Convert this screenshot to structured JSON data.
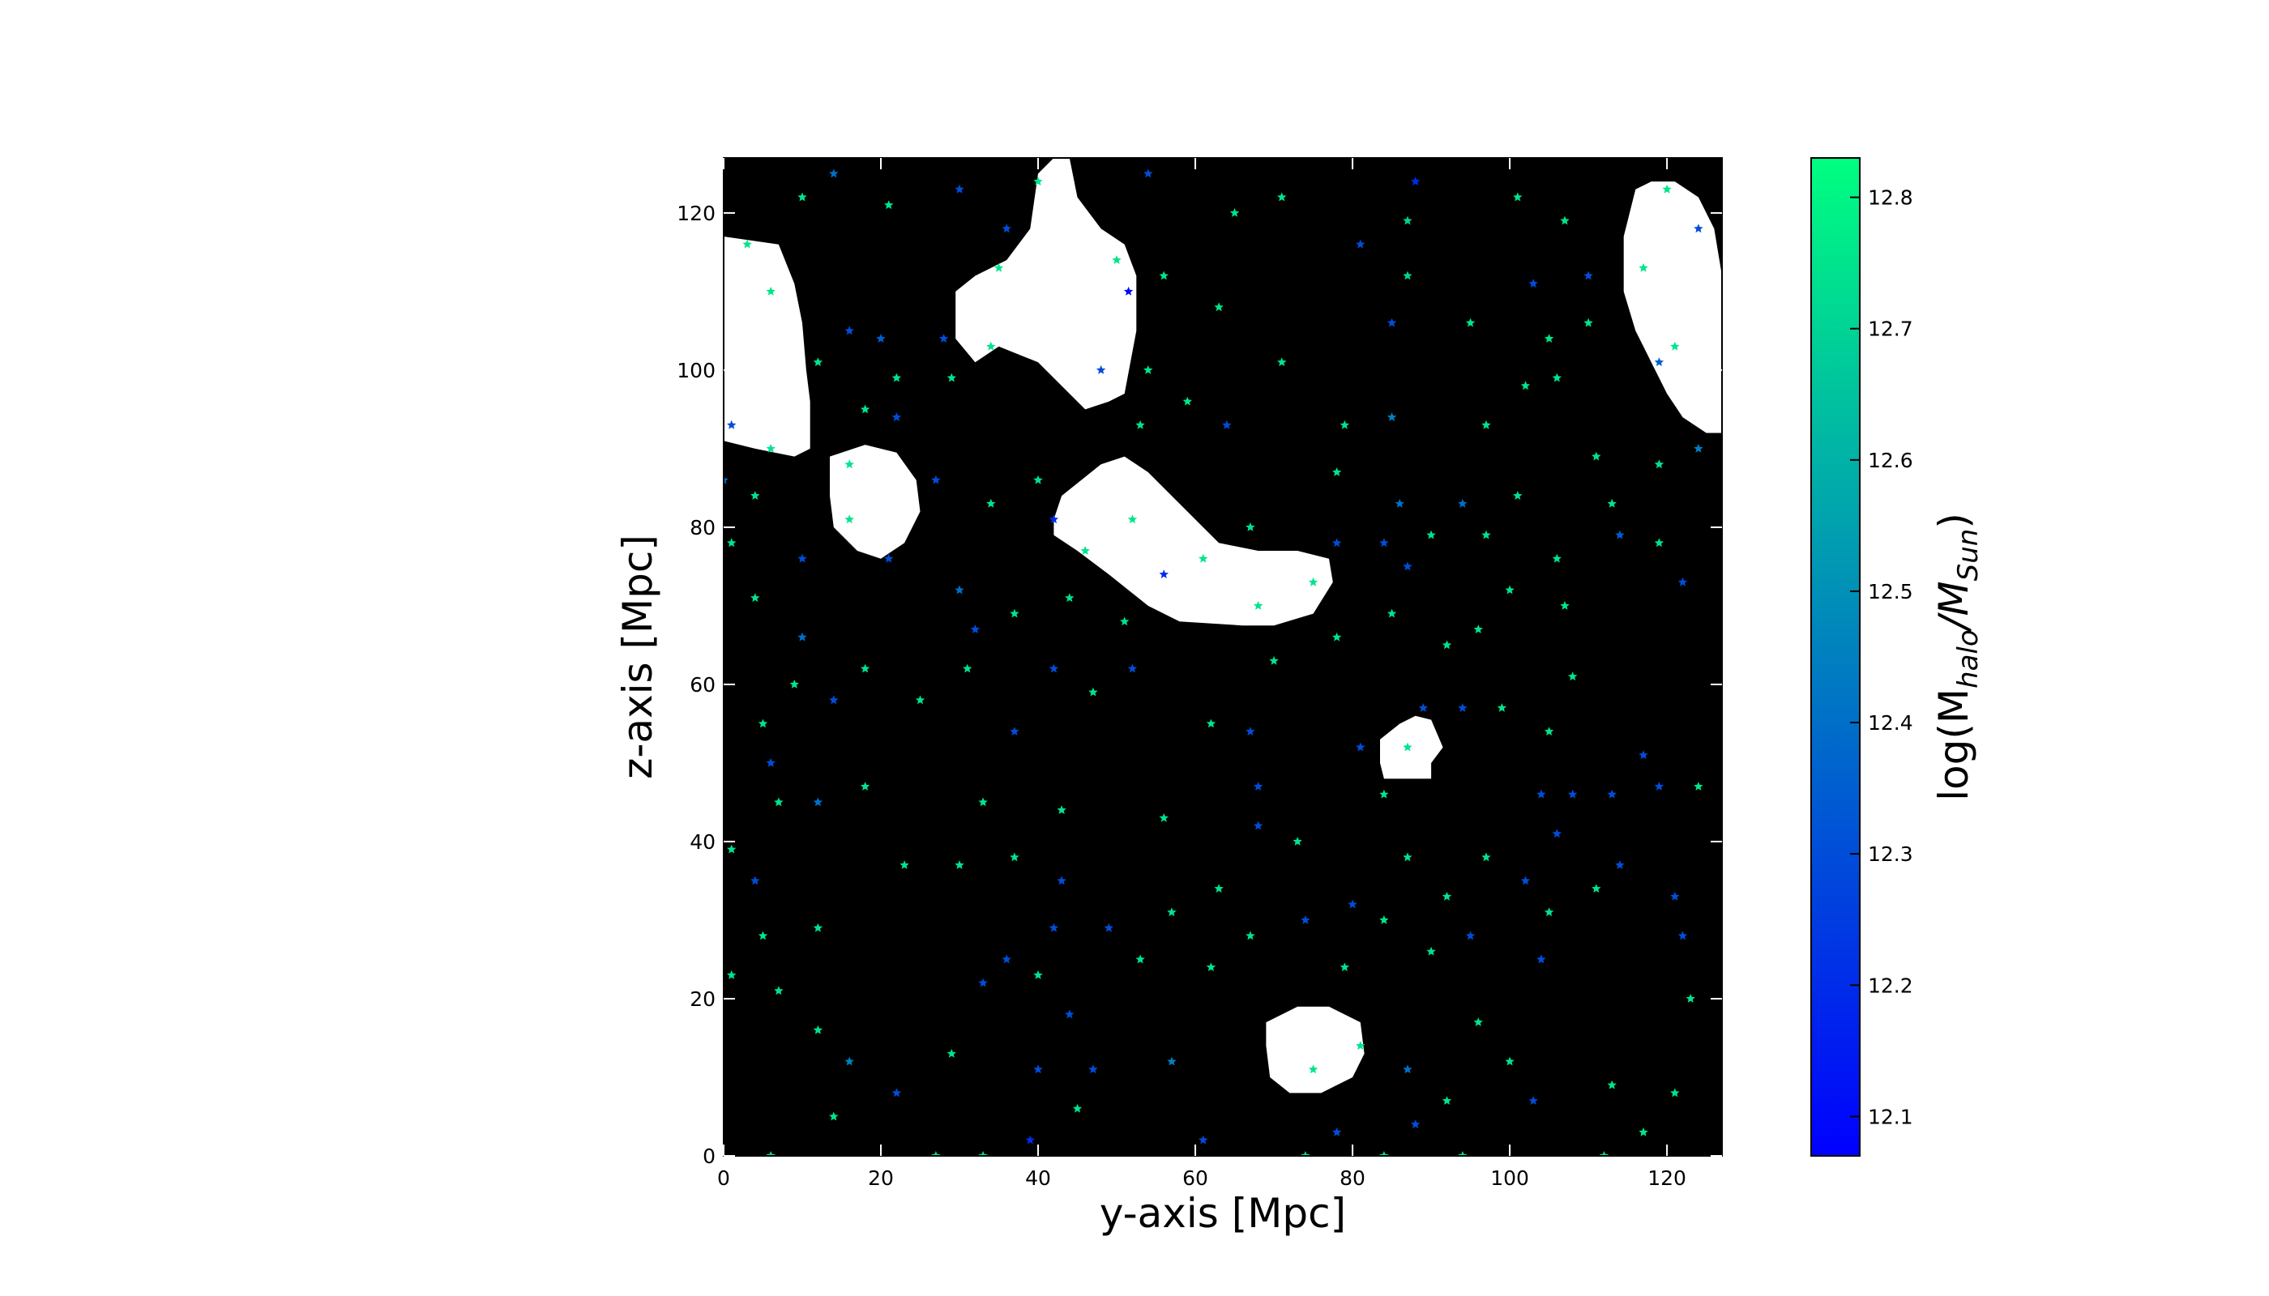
{
  "chart_data": {
    "type": "scatter",
    "xlabel": "y-axis [Mpc]",
    "ylabel": "z-axis [Mpc]",
    "xlim": [
      0,
      127
    ],
    "ylim": [
      0,
      127
    ],
    "x_ticks": [
      0,
      20,
      40,
      60,
      80,
      100,
      120
    ],
    "y_ticks": [
      0,
      20,
      40,
      60,
      80,
      100,
      120
    ],
    "background": "#000000",
    "region_color": "#ffffff",
    "regions": [
      {
        "shape": "blob",
        "points": [
          [
            0,
            117
          ],
          [
            7,
            116
          ],
          [
            9,
            111
          ],
          [
            10,
            106
          ],
          [
            10.5,
            100
          ],
          [
            11,
            96
          ],
          [
            11,
            90
          ],
          [
            9,
            89
          ],
          [
            4,
            90
          ],
          [
            0,
            91
          ]
        ]
      },
      {
        "shape": "blob",
        "points": [
          [
            40,
            125
          ],
          [
            42,
            127
          ],
          [
            44,
            127
          ],
          [
            45,
            122
          ],
          [
            48,
            118
          ],
          [
            51,
            116
          ],
          [
            52.5,
            112
          ],
          [
            52.5,
            105
          ],
          [
            51,
            97
          ],
          [
            49,
            96
          ],
          [
            46,
            95
          ],
          [
            44,
            97
          ],
          [
            40,
            101
          ],
          [
            35,
            103
          ],
          [
            32,
            101
          ],
          [
            29.5,
            104
          ],
          [
            29.5,
            110
          ],
          [
            32,
            112
          ],
          [
            36,
            114
          ],
          [
            39,
            118
          ]
        ]
      },
      {
        "shape": "blob",
        "points": [
          [
            13.5,
            89
          ],
          [
            18,
            90.5
          ],
          [
            22,
            89.5
          ],
          [
            24.5,
            86
          ],
          [
            25,
            82
          ],
          [
            23,
            78
          ],
          [
            20,
            76
          ],
          [
            17,
            77
          ],
          [
            14,
            80
          ],
          [
            13.5,
            84
          ]
        ]
      },
      {
        "shape": "blob",
        "points": [
          [
            43,
            84
          ],
          [
            48,
            88
          ],
          [
            51,
            89
          ],
          [
            54,
            87
          ],
          [
            57,
            84
          ],
          [
            60,
            81
          ],
          [
            63,
            78
          ],
          [
            68,
            77
          ],
          [
            73,
            77
          ],
          [
            77,
            76
          ],
          [
            77.5,
            73
          ],
          [
            75,
            69
          ],
          [
            70,
            67.5
          ],
          [
            66,
            67.5
          ],
          [
            58,
            68
          ],
          [
            54,
            70
          ],
          [
            49,
            74
          ],
          [
            45,
            77
          ],
          [
            42,
            79
          ],
          [
            42,
            81
          ]
        ]
      },
      {
        "shape": "blob",
        "points": [
          [
            116,
            123
          ],
          [
            118,
            124
          ],
          [
            121,
            124
          ],
          [
            124,
            122
          ],
          [
            126,
            118
          ],
          [
            127,
            112
          ],
          [
            127,
            92
          ],
          [
            125,
            92
          ],
          [
            122,
            94
          ],
          [
            120,
            97
          ],
          [
            118,
            101
          ],
          [
            116,
            105
          ],
          [
            114.5,
            110
          ],
          [
            114.5,
            117
          ]
        ]
      },
      {
        "shape": "blob",
        "points": [
          [
            83.5,
            53
          ],
          [
            86,
            55
          ],
          [
            88,
            56
          ],
          [
            90,
            55.5
          ],
          [
            91.5,
            52
          ],
          [
            90,
            50
          ],
          [
            90,
            48
          ],
          [
            84,
            48
          ],
          [
            83.5,
            50
          ]
        ]
      },
      {
        "shape": "blob",
        "points": [
          [
            69,
            17
          ],
          [
            73,
            19
          ],
          [
            77,
            19
          ],
          [
            81,
            17
          ],
          [
            81.5,
            13
          ],
          [
            80,
            10
          ],
          [
            76,
            8
          ],
          [
            72,
            8
          ],
          [
            69.5,
            10
          ],
          [
            69,
            14
          ]
        ]
      }
    ],
    "colorbar": {
      "label_main": "log(M",
      "label_sub1": "halo",
      "label_slash": "/M",
      "label_sub2": "Sun",
      "label_close": ")",
      "min": 12.07,
      "max": 12.83,
      "ticks": [
        "12.1",
        "12.2",
        "12.3",
        "12.4",
        "12.5",
        "12.6",
        "12.7",
        "12.8"
      ],
      "color_low": "#0000ff",
      "color_high": "#00ff80"
    },
    "points": [
      [
        14,
        125,
        12.4
      ],
      [
        30,
        123,
        12.3
      ],
      [
        54,
        125,
        12.3
      ],
      [
        88,
        124,
        12.2
      ],
      [
        10,
        122,
        12.75
      ],
      [
        21,
        121,
        12.75
      ],
      [
        40,
        124,
        12.75
      ],
      [
        65,
        120,
        12.75
      ],
      [
        71,
        122,
        12.75
      ],
      [
        87,
        119,
        12.7
      ],
      [
        101,
        122,
        12.75
      ],
      [
        107,
        119,
        12.75
      ],
      [
        120,
        123,
        12.75
      ],
      [
        124,
        118,
        12.3
      ],
      [
        3,
        116,
        12.75
      ],
      [
        6,
        110,
        12.75
      ],
      [
        16,
        105,
        12.3
      ],
      [
        20,
        104,
        12.35
      ],
      [
        28,
        104,
        12.3
      ],
      [
        35,
        113,
        12.75
      ],
      [
        36,
        118,
        12.3
      ],
      [
        50,
        114,
        12.75
      ],
      [
        51.5,
        110,
        12.1
      ],
      [
        56,
        112,
        12.75
      ],
      [
        63,
        108,
        12.75
      ],
      [
        81,
        116,
        12.3
      ],
      [
        85,
        106,
        12.3
      ],
      [
        87,
        112,
        12.7
      ],
      [
        95,
        106,
        12.75
      ],
      [
        103,
        111,
        12.3
      ],
      [
        105,
        104,
        12.75
      ],
      [
        110,
        112,
        12.3
      ],
      [
        110,
        106,
        12.75
      ],
      [
        117,
        113,
        12.75
      ],
      [
        121,
        103,
        12.75
      ],
      [
        119,
        101,
        12.35
      ],
      [
        12,
        101,
        12.75
      ],
      [
        18,
        95,
        12.75
      ],
      [
        22,
        94,
        12.3
      ],
      [
        22,
        99,
        12.75
      ],
      [
        29,
        99,
        12.75
      ],
      [
        34,
        103,
        12.75
      ],
      [
        48,
        100,
        12.3
      ],
      [
        54,
        100,
        12.75
      ],
      [
        59,
        96,
        12.75
      ],
      [
        71,
        101,
        12.75
      ],
      [
        1,
        93,
        12.3
      ],
      [
        6,
        90,
        12.75
      ],
      [
        53,
        93,
        12.75
      ],
      [
        64,
        93,
        12.3
      ],
      [
        79,
        93,
        12.75
      ],
      [
        85,
        94,
        12.45
      ],
      [
        97,
        93,
        12.75
      ],
      [
        102,
        98,
        12.75
      ],
      [
        106,
        99,
        12.75
      ],
      [
        111,
        89,
        12.75
      ],
      [
        119,
        88,
        12.75
      ],
      [
        124,
        90,
        12.45
      ],
      [
        0,
        86,
        12.4
      ],
      [
        4,
        84,
        12.75
      ],
      [
        16,
        88,
        12.75
      ],
      [
        16,
        81,
        12.75
      ],
      [
        21,
        76,
        12.3
      ],
      [
        27,
        86,
        12.3
      ],
      [
        34,
        83,
        12.75
      ],
      [
        40,
        86,
        12.75
      ],
      [
        42,
        81,
        12.2
      ],
      [
        46,
        77,
        12.75
      ],
      [
        52,
        81,
        12.75
      ],
      [
        56,
        74,
        12.2
      ],
      [
        61,
        76,
        12.75
      ],
      [
        67,
        80,
        12.75
      ],
      [
        75,
        73,
        12.75
      ],
      [
        78,
        87,
        12.75
      ],
      [
        78,
        78,
        12.3
      ],
      [
        84,
        78,
        12.3
      ],
      [
        87,
        75,
        12.3
      ],
      [
        86,
        83,
        12.4
      ],
      [
        90,
        79,
        12.75
      ],
      [
        94,
        83,
        12.4
      ],
      [
        97,
        79,
        12.75
      ],
      [
        101,
        84,
        12.75
      ],
      [
        100,
        72,
        12.75
      ],
      [
        106,
        76,
        12.75
      ],
      [
        113,
        83,
        12.75
      ],
      [
        114,
        79,
        12.35
      ],
      [
        119,
        78,
        12.75
      ],
      [
        122,
        73,
        12.3
      ],
      [
        1,
        78,
        12.75
      ],
      [
        4,
        71,
        12.75
      ],
      [
        10,
        76,
        12.3
      ],
      [
        10,
        66,
        12.4
      ],
      [
        9,
        60,
        12.75
      ],
      [
        14,
        58,
        12.3
      ],
      [
        18,
        62,
        12.75
      ],
      [
        25,
        58,
        12.75
      ],
      [
        30,
        72,
        12.4
      ],
      [
        32,
        67,
        12.3
      ],
      [
        31,
        62,
        12.75
      ],
      [
        37,
        69,
        12.75
      ],
      [
        42,
        62,
        12.3
      ],
      [
        44,
        71,
        12.75
      ],
      [
        47,
        59,
        12.75
      ],
      [
        51,
        68,
        12.75
      ],
      [
        52,
        62,
        12.3
      ],
      [
        68,
        70,
        12.75
      ],
      [
        70,
        63,
        12.75
      ],
      [
        78,
        66,
        12.75
      ],
      [
        85,
        69,
        12.75
      ],
      [
        92,
        65,
        12.75
      ],
      [
        96,
        67,
        12.75
      ],
      [
        107,
        70,
        12.75
      ],
      [
        108,
        61,
        12.75
      ],
      [
        5,
        55,
        12.75
      ],
      [
        6,
        50,
        12.3
      ],
      [
        7,
        45,
        12.75
      ],
      [
        12,
        45,
        12.4
      ],
      [
        18,
        47,
        12.75
      ],
      [
        33,
        45,
        12.75
      ],
      [
        37,
        54,
        12.3
      ],
      [
        43,
        44,
        12.75
      ],
      [
        56,
        43,
        12.75
      ],
      [
        62,
        55,
        12.75
      ],
      [
        67,
        54,
        12.3
      ],
      [
        68,
        47,
        12.3
      ],
      [
        68,
        42,
        12.3
      ],
      [
        73,
        40,
        12.75
      ],
      [
        81,
        52,
        12.3
      ],
      [
        84,
        46,
        12.75
      ],
      [
        87,
        52,
        12.75
      ],
      [
        89,
        57,
        12.3
      ],
      [
        94,
        57,
        12.3
      ],
      [
        99,
        57,
        12.75
      ],
      [
        105,
        54,
        12.75
      ],
      [
        104,
        46,
        12.3
      ],
      [
        108,
        46,
        12.3
      ],
      [
        113,
        46,
        12.3
      ],
      [
        117,
        51,
        12.3
      ],
      [
        119,
        47,
        12.3
      ],
      [
        124,
        47,
        12.75
      ],
      [
        106,
        41,
        12.3
      ],
      [
        1,
        39,
        12.75
      ],
      [
        4,
        35,
        12.3
      ],
      [
        5,
        28,
        12.75
      ],
      [
        12,
        29,
        12.75
      ],
      [
        23,
        37,
        12.75
      ],
      [
        30,
        37,
        12.75
      ],
      [
        37,
        38,
        12.75
      ],
      [
        43,
        35,
        12.3
      ],
      [
        42,
        29,
        12.3
      ],
      [
        49,
        29,
        12.3
      ],
      [
        57,
        31,
        12.75
      ],
      [
        63,
        34,
        12.75
      ],
      [
        67,
        28,
        12.75
      ],
      [
        74,
        30,
        12.3
      ],
      [
        80,
        32,
        12.3
      ],
      [
        84,
        30,
        12.75
      ],
      [
        87,
        38,
        12.75
      ],
      [
        92,
        33,
        12.75
      ],
      [
        95,
        28,
        12.3
      ],
      [
        97,
        38,
        12.75
      ],
      [
        102,
        35,
        12.3
      ],
      [
        105,
        31,
        12.75
      ],
      [
        111,
        34,
        12.75
      ],
      [
        114,
        37,
        12.3
      ],
      [
        121,
        33,
        12.3
      ],
      [
        122,
        28,
        12.3
      ],
      [
        1,
        23,
        12.75
      ],
      [
        7,
        21,
        12.75
      ],
      [
        12,
        16,
        12.75
      ],
      [
        16,
        12,
        12.45
      ],
      [
        22,
        8,
        12.3
      ],
      [
        29,
        13,
        12.75
      ],
      [
        33,
        22,
        12.3
      ],
      [
        36,
        25,
        12.3
      ],
      [
        40,
        23,
        12.75
      ],
      [
        40,
        11,
        12.3
      ],
      [
        44,
        18,
        12.3
      ],
      [
        47,
        11,
        12.3
      ],
      [
        45,
        6,
        12.75
      ],
      [
        53,
        25,
        12.75
      ],
      [
        57,
        12,
        12.45
      ],
      [
        62,
        24,
        12.75
      ],
      [
        75,
        11,
        12.75
      ],
      [
        79,
        24,
        12.75
      ],
      [
        81,
        14,
        12.75
      ],
      [
        87,
        11,
        12.4
      ],
      [
        88,
        4,
        12.3
      ],
      [
        90,
        26,
        12.75
      ],
      [
        92,
        7,
        12.75
      ],
      [
        96,
        17,
        12.75
      ],
      [
        100,
        12,
        12.75
      ],
      [
        104,
        25,
        12.3
      ],
      [
        103,
        7,
        12.3
      ],
      [
        113,
        9,
        12.75
      ],
      [
        117,
        3,
        12.75
      ],
      [
        121,
        8,
        12.75
      ],
      [
        123,
        20,
        12.75
      ],
      [
        14,
        5,
        12.75
      ],
      [
        39,
        2,
        12.2
      ],
      [
        61,
        2,
        12.3
      ],
      [
        78,
        3,
        12.3
      ],
      [
        6,
        0,
        12.75
      ],
      [
        27,
        0,
        12.75
      ],
      [
        33,
        0,
        12.75
      ],
      [
        74,
        0,
        12.75
      ],
      [
        84,
        0,
        12.75
      ],
      [
        94,
        0,
        12.75
      ],
      [
        112,
        0,
        12.75
      ]
    ]
  }
}
